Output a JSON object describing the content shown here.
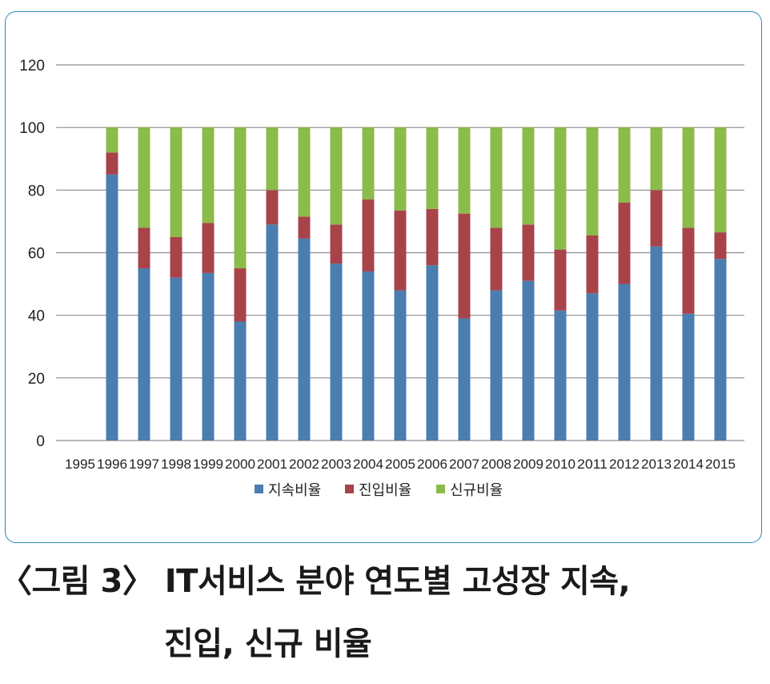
{
  "caption": {
    "line1": "〈그림 3〉 IT서비스 분야 연도별 고성장 지속,",
    "line2": "진입, 신규 비율"
  },
  "chart_data": {
    "type": "bar",
    "stacked": true,
    "categories": [
      "1995",
      "1996",
      "1997",
      "1998",
      "1999",
      "2000",
      "2001",
      "2002",
      "2003",
      "2004",
      "2005",
      "2006",
      "2007",
      "2008",
      "2009",
      "2010",
      "2011",
      "2012",
      "2013",
      "2014",
      "2015"
    ],
    "series": [
      {
        "name": "지속비율",
        "color": "#4a7eb0",
        "values": [
          0,
          85,
          55,
          52,
          53.5,
          38,
          69,
          64.5,
          56.5,
          54,
          48,
          56,
          39,
          48,
          51,
          41.5,
          47,
          50,
          62,
          40.5,
          58
        ]
      },
      {
        "name": "진입비율",
        "color": "#a9434a",
        "values": [
          0,
          7,
          13,
          13,
          16,
          17,
          11,
          7,
          12.5,
          23,
          25.5,
          18,
          33.5,
          20,
          18,
          19.5,
          18.5,
          26,
          18,
          27.5,
          8.5
        ]
      },
      {
        "name": "신규비율",
        "color": "#8bbb4b",
        "values": [
          0,
          8,
          32,
          35,
          30.5,
          45,
          20,
          28.5,
          31,
          23,
          26.5,
          26,
          27.5,
          32,
          31,
          39,
          34.5,
          24,
          20,
          32,
          33.5
        ]
      }
    ],
    "ylim": [
      0,
      120
    ],
    "yticks": [
      0,
      20,
      40,
      60,
      80,
      100,
      120
    ],
    "grid": true,
    "legend_position": "bottom"
  }
}
